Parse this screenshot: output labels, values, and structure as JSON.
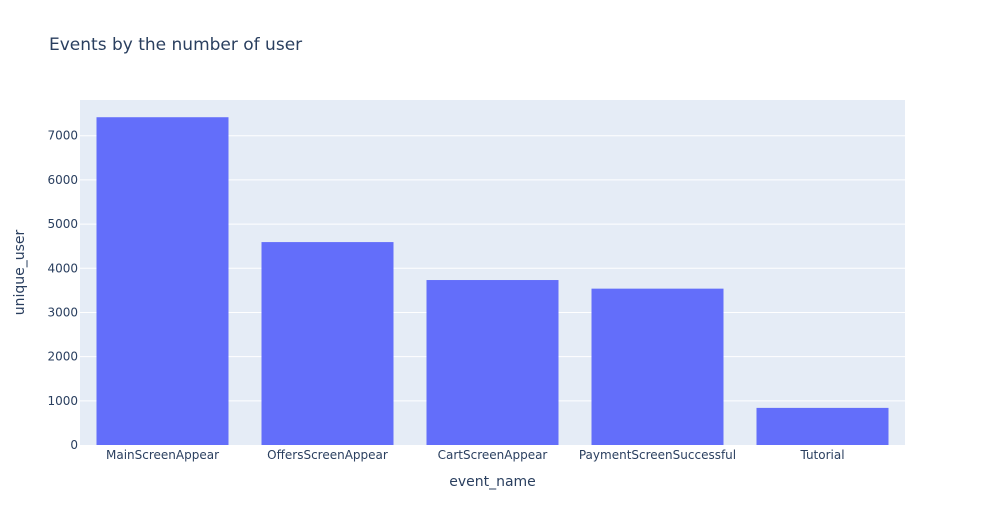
{
  "chart_data": {
    "type": "bar",
    "title": "Events by the number of user",
    "xlabel": "event_name",
    "ylabel": "unique_user",
    "categories": [
      "MainScreenAppear",
      "OffersScreenAppear",
      "CartScreenAppear",
      "PaymentScreenSuccessful",
      "Tutorial"
    ],
    "values": [
      7419,
      4593,
      3734,
      3539,
      840
    ],
    "ylim": [
      0,
      7809
    ],
    "yticks": [
      0,
      1000,
      2000,
      3000,
      4000,
      5000,
      6000,
      7000
    ],
    "ytick_labels": [
      "0",
      "1000",
      "2000",
      "3000",
      "4000",
      "5000",
      "6000",
      "7000"
    ],
    "grid": true,
    "colors": {
      "bar": "#636efa",
      "plot_bg": "#e5ecf6",
      "grid": "#ffffff",
      "text": "#2a3f5f"
    }
  }
}
